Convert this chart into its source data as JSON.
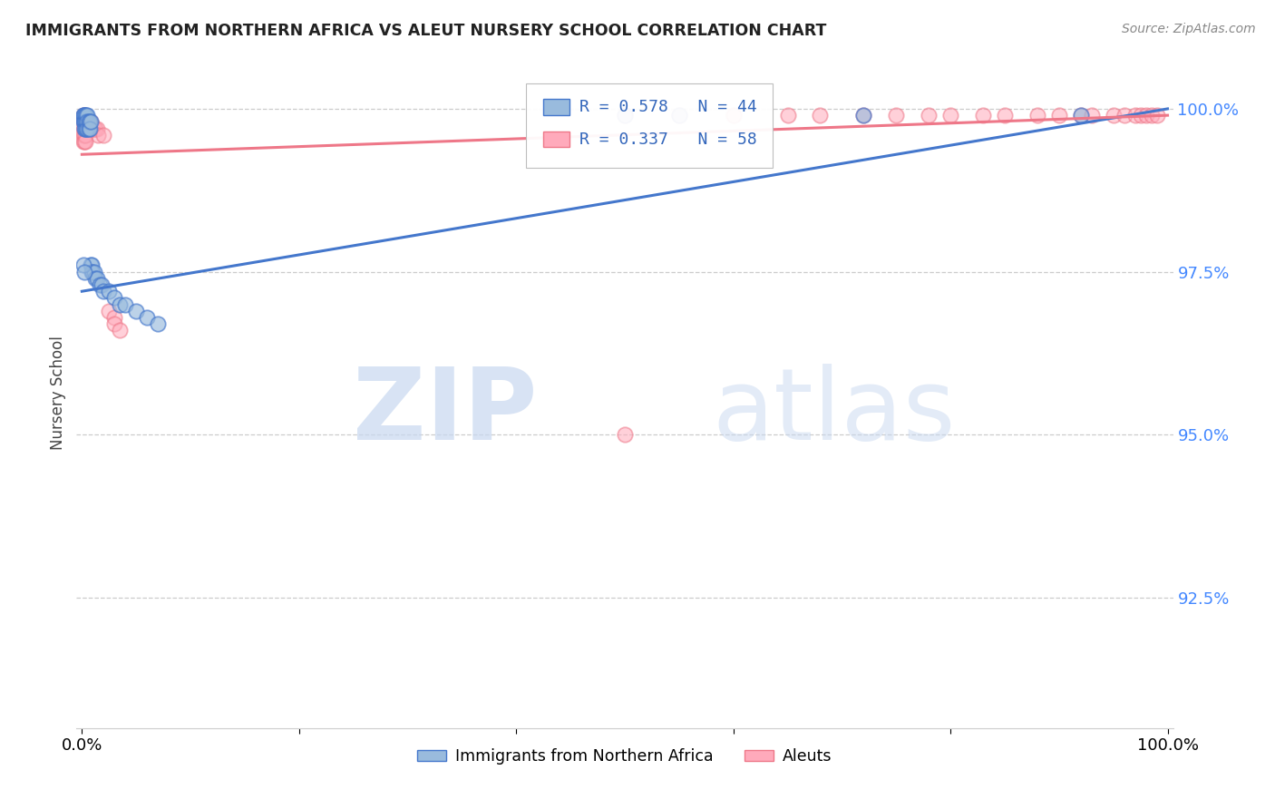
{
  "title": "IMMIGRANTS FROM NORTHERN AFRICA VS ALEUT NURSERY SCHOOL CORRELATION CHART",
  "source": "Source: ZipAtlas.com",
  "ylabel": "Nursery School",
  "legend_label1": "Immigrants from Northern Africa",
  "legend_label2": "Aleuts",
  "R1": 0.578,
  "N1": 44,
  "R2": 0.337,
  "N2": 58,
  "ytick_labels": [
    "100.0%",
    "97.5%",
    "95.0%",
    "92.5%"
  ],
  "ytick_values": [
    1.0,
    0.975,
    0.95,
    0.925
  ],
  "xlim": [
    0.0,
    1.0
  ],
  "ylim": [
    0.905,
    1.008
  ],
  "color_blue": "#99BBDD",
  "color_pink": "#FFAABB",
  "color_blue_line": "#4477CC",
  "color_pink_line": "#EE7788",
  "blue_x": [
    0.001,
    0.001,
    0.001,
    0.002,
    0.002,
    0.002,
    0.002,
    0.003,
    0.003,
    0.003,
    0.004,
    0.004,
    0.004,
    0.005,
    0.005,
    0.005,
    0.006,
    0.006,
    0.007,
    0.007,
    0.008,
    0.008,
    0.009,
    0.009,
    0.01,
    0.011,
    0.012,
    0.014,
    0.016,
    0.018,
    0.02,
    0.025,
    0.03,
    0.035,
    0.04,
    0.05,
    0.06,
    0.07,
    0.001,
    0.002,
    0.5,
    0.55,
    0.72,
    0.92
  ],
  "blue_y": [
    0.999,
    0.999,
    0.998,
    0.999,
    0.998,
    0.998,
    0.997,
    0.999,
    0.998,
    0.997,
    0.999,
    0.998,
    0.997,
    0.999,
    0.998,
    0.997,
    0.998,
    0.997,
    0.998,
    0.997,
    0.998,
    0.976,
    0.976,
    0.975,
    0.975,
    0.975,
    0.974,
    0.974,
    0.973,
    0.973,
    0.972,
    0.972,
    0.971,
    0.97,
    0.97,
    0.969,
    0.968,
    0.967,
    0.976,
    0.975,
    0.999,
    0.999,
    0.999,
    0.999
  ],
  "pink_x": [
    0.001,
    0.001,
    0.001,
    0.002,
    0.002,
    0.002,
    0.003,
    0.003,
    0.004,
    0.004,
    0.005,
    0.005,
    0.006,
    0.006,
    0.007,
    0.007,
    0.008,
    0.008,
    0.009,
    0.01,
    0.011,
    0.012,
    0.014,
    0.015,
    0.02,
    0.025,
    0.03,
    0.03,
    0.035,
    0.001,
    0.001,
    0.002,
    0.002,
    0.003,
    0.003,
    0.5,
    0.55,
    0.6,
    0.65,
    0.68,
    0.72,
    0.75,
    0.78,
    0.8,
    0.83,
    0.85,
    0.88,
    0.9,
    0.92,
    0.93,
    0.95,
    0.96,
    0.97,
    0.975,
    0.98,
    0.985,
    0.99,
    0.5
  ],
  "pink_y": [
    0.999,
    0.998,
    0.997,
    0.999,
    0.998,
    0.997,
    0.998,
    0.997,
    0.998,
    0.997,
    0.998,
    0.997,
    0.998,
    0.997,
    0.998,
    0.997,
    0.998,
    0.997,
    0.997,
    0.997,
    0.997,
    0.997,
    0.997,
    0.996,
    0.996,
    0.969,
    0.968,
    0.967,
    0.966,
    0.996,
    0.995,
    0.996,
    0.995,
    0.996,
    0.995,
    0.999,
    0.999,
    0.999,
    0.999,
    0.999,
    0.999,
    0.999,
    0.999,
    0.999,
    0.999,
    0.999,
    0.999,
    0.999,
    0.999,
    0.999,
    0.999,
    0.999,
    0.999,
    0.999,
    0.999,
    0.999,
    0.999,
    0.95
  ],
  "blue_trend_x": [
    0.0,
    1.0
  ],
  "blue_trend_y": [
    0.972,
    1.0
  ],
  "pink_trend_x": [
    0.0,
    1.0
  ],
  "pink_trend_y": [
    0.993,
    0.999
  ]
}
